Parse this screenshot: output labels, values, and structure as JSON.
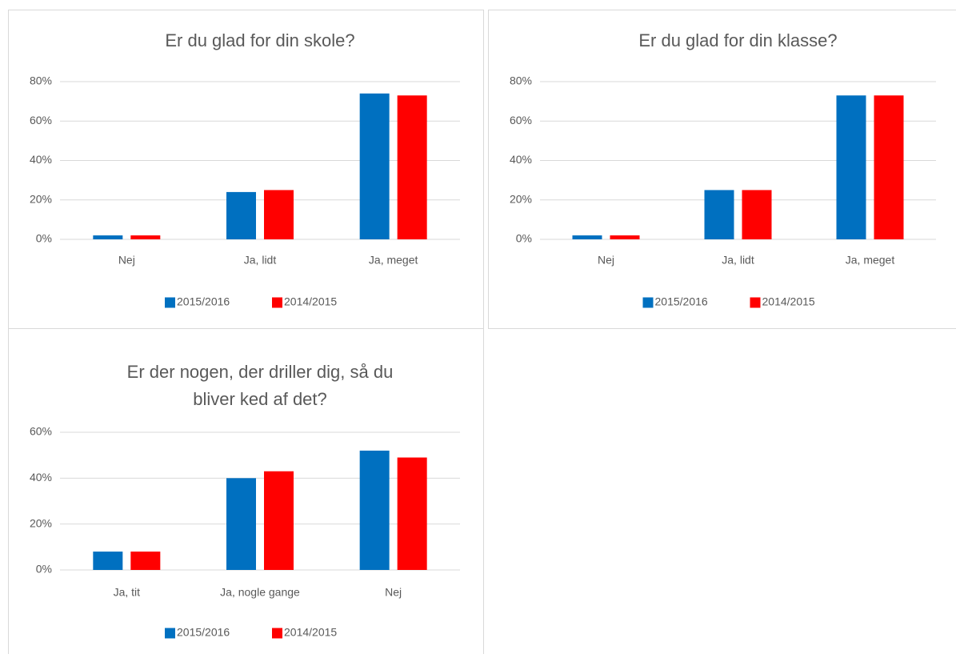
{
  "chart_data": [
    {
      "type": "bar",
      "title": [
        "Er du glad for din skole?"
      ],
      "categories": [
        "Nej",
        "Ja, lidt",
        "Ja, meget"
      ],
      "series": [
        {
          "name": "2015/2016",
          "color": "#0070c0",
          "values": [
            2,
            24,
            74
          ]
        },
        {
          "name": "2014/2015",
          "color": "#ff0000",
          "values": [
            2,
            25,
            73
          ]
        }
      ],
      "ylim": [
        0,
        80
      ],
      "yticks": [
        {
          "value": 0,
          "label": "0%"
        },
        {
          "value": 20,
          "label": "20%"
        },
        {
          "value": 40,
          "label": "40%"
        },
        {
          "value": 60,
          "label": "60%"
        },
        {
          "value": 80,
          "label": "80%"
        }
      ],
      "grid": true,
      "legend": "bottom"
    },
    {
      "type": "bar",
      "title": [
        "Er du glad for din klasse?"
      ],
      "categories": [
        "Nej",
        "Ja, lidt",
        "Ja, meget"
      ],
      "series": [
        {
          "name": "2015/2016",
          "color": "#0070c0",
          "values": [
            2,
            25,
            73
          ]
        },
        {
          "name": "2014/2015",
          "color": "#ff0000",
          "values": [
            2,
            25,
            73
          ]
        }
      ],
      "ylim": [
        0,
        80
      ],
      "yticks": [
        {
          "value": 0,
          "label": "0%"
        },
        {
          "value": 20,
          "label": "20%"
        },
        {
          "value": 40,
          "label": "40%"
        },
        {
          "value": 60,
          "label": "60%"
        },
        {
          "value": 80,
          "label": "80%"
        }
      ],
      "grid": true,
      "legend": "bottom"
    },
    {
      "type": "bar",
      "title": [
        "Er der nogen, der driller dig, så du",
        "bliver ked af det?"
      ],
      "categories": [
        "Ja, tit",
        "Ja, nogle gange",
        "Nej"
      ],
      "series": [
        {
          "name": "2015/2016",
          "color": "#0070c0",
          "values": [
            8,
            40,
            52
          ]
        },
        {
          "name": "2014/2015",
          "color": "#ff0000",
          "values": [
            8,
            43,
            49
          ]
        }
      ],
      "ylim": [
        0,
        60
      ],
      "yticks": [
        {
          "value": 0,
          "label": "0%"
        },
        {
          "value": 20,
          "label": "20%"
        },
        {
          "value": 40,
          "label": "40%"
        },
        {
          "value": 60,
          "label": "60%"
        }
      ],
      "grid": true,
      "legend": "bottom"
    }
  ]
}
